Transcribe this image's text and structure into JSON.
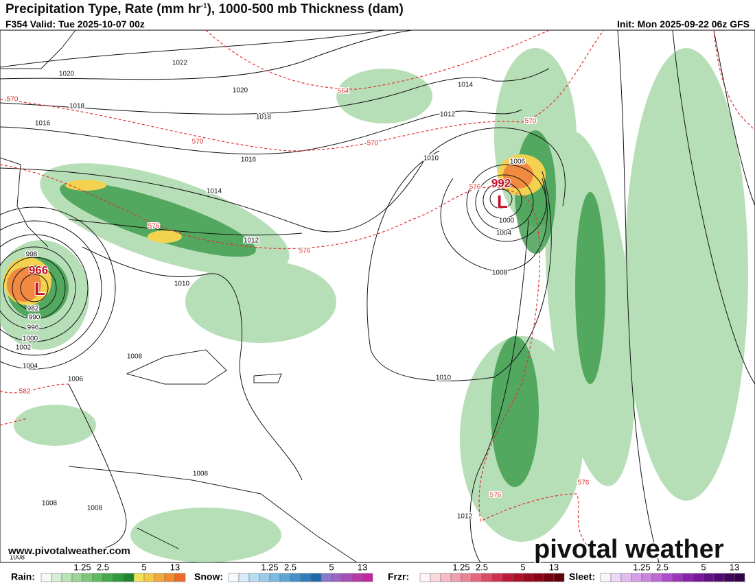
{
  "header": {
    "title_start": "Precipitation Type, Rate (mm hr",
    "title_sup": "-1",
    "title_end": "), 1000-500 mb Thickness (dam)",
    "valid": "F354 Valid: Tue 2025-10-07 00z",
    "init": "Init: Mon 2025-09-22 06z GFS"
  },
  "map": {
    "isobar_labels": [
      "1022",
      "1020",
      "1020",
      "1018",
      "1018",
      "1016",
      "1016",
      "1014",
      "1014",
      "1012",
      "1012",
      "1010",
      "1010",
      "1010",
      "1008",
      "1008",
      "1008",
      "1008",
      "1008",
      "1006",
      "1006",
      "1004",
      "1004",
      "1002",
      "1000",
      "1000",
      "998",
      "996",
      "990",
      "982",
      "1012",
      "1008"
    ],
    "thickness_labels": [
      "570",
      "564",
      "570",
      "570",
      "570",
      "576",
      "576",
      "576",
      "582",
      "576",
      "576"
    ],
    "lows": [
      {
        "pressure": "966",
        "symbol": "L"
      },
      {
        "pressure": "992",
        "symbol": "L"
      }
    ]
  },
  "watermark": {
    "url": "www.pivotalweather.com",
    "logo": "pivotal weather"
  },
  "legend": [
    {
      "name": "Rain:",
      "ticks": [
        "1.25",
        "2.5",
        "5",
        "13"
      ]
    },
    {
      "name": "Snow:",
      "ticks": [
        "1.25",
        "2.5",
        "5",
        "13"
      ]
    },
    {
      "name": "Frzr:",
      "ticks": [
        "1.25",
        "2.5",
        "5",
        "13"
      ]
    },
    {
      "name": "Sleet:",
      "ticks": [
        "1.25",
        "2.5",
        "5",
        "13"
      ]
    }
  ]
}
